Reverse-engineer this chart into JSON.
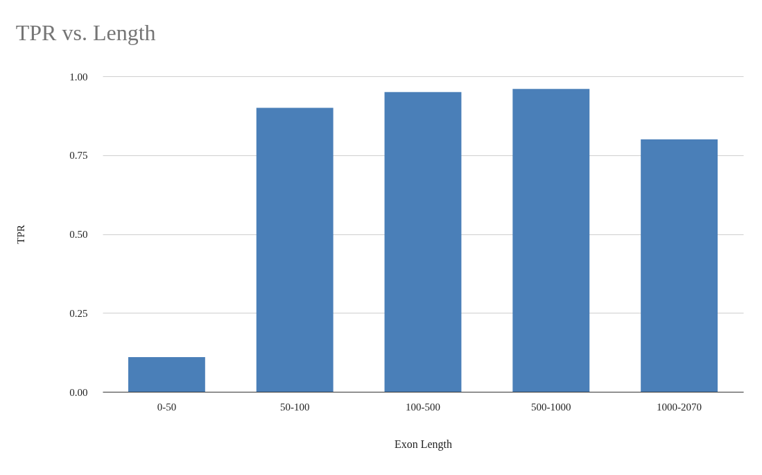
{
  "chart_data": {
    "type": "bar",
    "title": "TPR vs. Length",
    "xlabel": "Exon Length",
    "ylabel": "TPR",
    "categories": [
      "0-50",
      "50-100",
      "100-500",
      "500-1000",
      "1000-2070"
    ],
    "values": [
      0.11,
      0.9,
      0.95,
      0.96,
      0.8
    ],
    "color": "#4a7fb8",
    "ylim": [
      0,
      1
    ],
    "yticks": [
      {
        "value": 0,
        "label": "0.00"
      },
      {
        "value": 0.25,
        "label": "0.25"
      },
      {
        "value": 0.5,
        "label": "0.50"
      },
      {
        "value": 0.75,
        "label": "0.75"
      },
      {
        "value": 1,
        "label": "1.00"
      }
    ],
    "grid": "y"
  }
}
